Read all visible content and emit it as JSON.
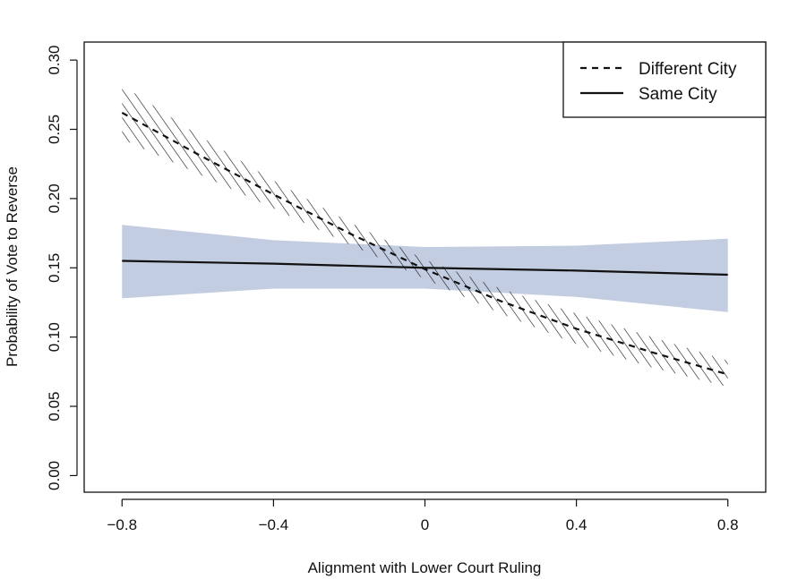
{
  "chart_data": {
    "type": "line",
    "title": "",
    "xlabel": "Alignment with Lower Court Ruling",
    "ylabel": "Probability of Vote to Reverse",
    "xlim": [
      -0.9,
      0.9
    ],
    "ylim": [
      -0.012,
      0.313
    ],
    "x_ticks": [
      -0.8,
      -0.4,
      0,
      0.4,
      0.8
    ],
    "x_tick_labels": [
      "−0.8",
      "−0.4",
      "0",
      "0.4",
      "0.8"
    ],
    "y_ticks": [
      0.0,
      0.05,
      0.1,
      0.15,
      0.2,
      0.25,
      0.3
    ],
    "y_tick_labels": [
      "0.00",
      "0.05",
      "0.10",
      "0.15",
      "0.20",
      "0.25",
      "0.30"
    ],
    "legend_position": "top-right",
    "legend": [
      {
        "label": "Different City",
        "style": "dashed"
      },
      {
        "label": "Same City",
        "style": "solid"
      }
    ],
    "series": [
      {
        "name": "Different City",
        "style": "dashed",
        "color": "#111111",
        "band_fill": "hatched",
        "x": [
          -0.8,
          -0.6,
          -0.4,
          -0.2,
          0.0,
          0.2,
          0.4,
          0.6,
          0.8
        ],
        "y": [
          0.262,
          0.232,
          0.203,
          0.175,
          0.149,
          0.126,
          0.106,
          0.089,
          0.073
        ],
        "lower": [
          0.243,
          0.218,
          0.193,
          0.167,
          0.142,
          0.117,
          0.095,
          0.078,
          0.064
        ],
        "upper": [
          0.282,
          0.246,
          0.213,
          0.183,
          0.156,
          0.135,
          0.117,
          0.1,
          0.083
        ]
      },
      {
        "name": "Same City",
        "style": "solid",
        "color": "#111111",
        "band_fill": "#c3cde1",
        "x": [
          -0.8,
          -0.4,
          0.0,
          0.4,
          0.8
        ],
        "y": [
          0.155,
          0.153,
          0.15,
          0.148,
          0.145
        ],
        "lower": [
          0.128,
          0.135,
          0.135,
          0.129,
          0.118
        ],
        "upper": [
          0.181,
          0.17,
          0.165,
          0.166,
          0.171
        ]
      }
    ]
  }
}
